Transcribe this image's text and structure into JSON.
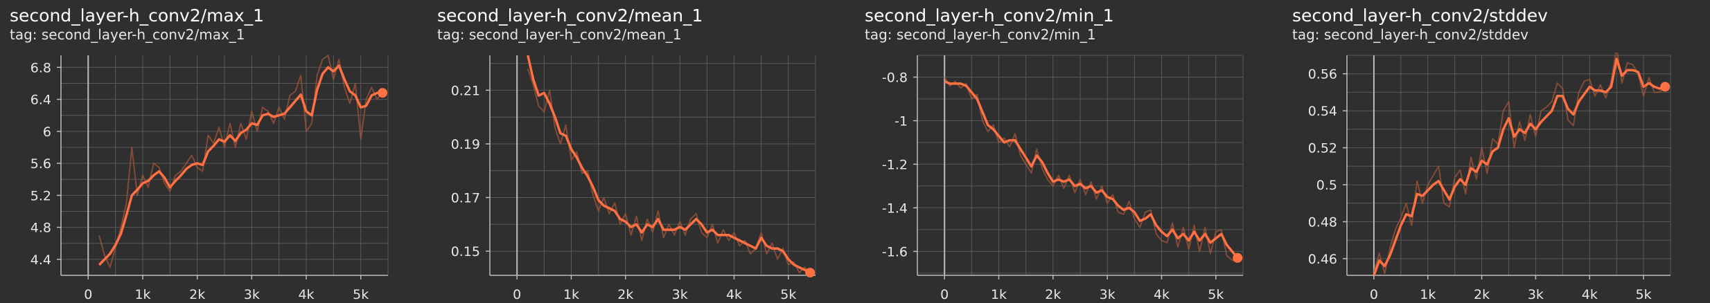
{
  "colors": {
    "background": "#2f2f2f",
    "grid": "#5a5a5a",
    "axis": "#bdbdbd",
    "line": "#ff7043",
    "raw_line": "#a0553a"
  },
  "chart_data": [
    {
      "type": "line",
      "title": "second_layer-h_conv2/max_1",
      "tag": "tag: second_layer-h_conv2/max_1",
      "xlim": [
        -500,
        5500
      ],
      "ylim": [
        4.2,
        6.95
      ],
      "xticks": [
        0,
        1000,
        2000,
        3000,
        4000,
        5000
      ],
      "xtick_labels": [
        "0",
        "1k",
        "2k",
        "3k",
        "4k",
        "5k"
      ],
      "yticks": [
        4.4,
        4.8,
        5.2,
        5.6,
        6.0,
        6.4,
        6.8
      ],
      "ytick_labels": [
        "4.4",
        "4.8",
        "5.2",
        "5.6",
        "6",
        "6.4",
        "6.8"
      ],
      "grid": true,
      "series": [
        {
          "role": "smoothed",
          "x": [
            200,
            300,
            400,
            500,
            600,
            700,
            800,
            900,
            1000,
            1100,
            1200,
            1300,
            1400,
            1500,
            1600,
            1700,
            1800,
            1900,
            2000,
            2100,
            2200,
            2300,
            2400,
            2500,
            2600,
            2700,
            2800,
            2900,
            3000,
            3100,
            3200,
            3300,
            3400,
            3500,
            3600,
            3700,
            3800,
            3900,
            4000,
            4100,
            4200,
            4300,
            4400,
            4500,
            4600,
            4700,
            4800,
            4900,
            5000,
            5100,
            5200,
            5300,
            5400
          ],
          "y": [
            4.33,
            4.4,
            4.47,
            4.58,
            4.72,
            4.95,
            5.2,
            5.27,
            5.35,
            5.38,
            5.45,
            5.5,
            5.42,
            5.3,
            5.38,
            5.45,
            5.53,
            5.58,
            5.6,
            5.58,
            5.75,
            5.82,
            5.9,
            5.87,
            5.95,
            5.88,
            5.98,
            6.02,
            6.1,
            6.08,
            6.2,
            6.22,
            6.18,
            6.2,
            6.22,
            6.3,
            6.38,
            6.46,
            6.25,
            6.2,
            6.52,
            6.72,
            6.8,
            6.75,
            6.82,
            6.65,
            6.5,
            6.45,
            6.3,
            6.32,
            6.45,
            6.48,
            6.48
          ]
        },
        {
          "role": "raw",
          "x": [
            200,
            300,
            400,
            500,
            600,
            700,
            800,
            900,
            1000,
            1100,
            1200,
            1300,
            1400,
            1500,
            1600,
            1700,
            1800,
            1900,
            2000,
            2100,
            2200,
            2300,
            2400,
            2500,
            2600,
            2700,
            2800,
            2900,
            3000,
            3100,
            3200,
            3300,
            3400,
            3500,
            3600,
            3700,
            3800,
            3900,
            4000,
            4100,
            4200,
            4300,
            4400,
            4500,
            4600,
            4700,
            4800,
            4900,
            5000,
            5100,
            5200,
            5300,
            5400
          ],
          "y": [
            4.7,
            4.45,
            4.3,
            4.55,
            4.8,
            5.1,
            5.8,
            5.2,
            5.45,
            5.3,
            5.6,
            5.55,
            5.35,
            5.25,
            5.45,
            5.5,
            5.6,
            5.7,
            5.55,
            5.5,
            5.95,
            5.85,
            6.05,
            5.8,
            6.1,
            5.8,
            6.1,
            5.9,
            6.25,
            6.0,
            6.3,
            6.25,
            6.1,
            6.3,
            6.15,
            6.45,
            6.5,
            6.7,
            6.0,
            6.1,
            6.7,
            6.9,
            6.95,
            6.65,
            6.9,
            6.55,
            6.35,
            6.6,
            5.9,
            6.4,
            6.55,
            6.4,
            6.5
          ]
        }
      ]
    },
    {
      "type": "line",
      "title": "second_layer-h_conv2/mean_1",
      "tag": "tag: second_layer-h_conv2/mean_1",
      "xlim": [
        -500,
        5500
      ],
      "ylim": [
        0.141,
        0.223
      ],
      "xticks": [
        0,
        1000,
        2000,
        3000,
        4000,
        5000
      ],
      "xtick_labels": [
        "0",
        "1k",
        "2k",
        "3k",
        "4k",
        "5k"
      ],
      "yticks": [
        0.15,
        0.17,
        0.19,
        0.21
      ],
      "ytick_labels": [
        "0.15",
        "0.17",
        "0.19",
        "0.21"
      ],
      "grid": true,
      "series": [
        {
          "role": "smoothed",
          "x": [
            200,
            300,
            400,
            500,
            600,
            700,
            800,
            900,
            1000,
            1100,
            1200,
            1300,
            1400,
            1500,
            1600,
            1700,
            1800,
            1900,
            2000,
            2100,
            2200,
            2300,
            2400,
            2500,
            2600,
            2700,
            2800,
            2900,
            3000,
            3100,
            3200,
            3300,
            3400,
            3500,
            3600,
            3700,
            3800,
            3900,
            4000,
            4100,
            4200,
            4300,
            4400,
            4500,
            4600,
            4700,
            4800,
            4900,
            5000,
            5100,
            5200,
            5300,
            5400
          ],
          "y": [
            0.223,
            0.214,
            0.208,
            0.209,
            0.205,
            0.2,
            0.194,
            0.193,
            0.188,
            0.185,
            0.181,
            0.178,
            0.174,
            0.169,
            0.167,
            0.166,
            0.165,
            0.162,
            0.161,
            0.159,
            0.16,
            0.157,
            0.16,
            0.159,
            0.162,
            0.158,
            0.158,
            0.158,
            0.159,
            0.158,
            0.16,
            0.162,
            0.16,
            0.157,
            0.158,
            0.156,
            0.156,
            0.156,
            0.155,
            0.154,
            0.153,
            0.152,
            0.151,
            0.155,
            0.152,
            0.151,
            0.151,
            0.15,
            0.147,
            0.145,
            0.144,
            0.143,
            0.142
          ]
        },
        {
          "role": "raw",
          "x": [
            200,
            300,
            400,
            500,
            600,
            700,
            800,
            900,
            1000,
            1100,
            1200,
            1300,
            1400,
            1500,
            1600,
            1700,
            1800,
            1900,
            2000,
            2100,
            2200,
            2300,
            2400,
            2500,
            2600,
            2700,
            2800,
            2900,
            3000,
            3100,
            3200,
            3300,
            3400,
            3500,
            3600,
            3700,
            3800,
            3900,
            4000,
            4100,
            4200,
            4300,
            4400,
            4500,
            4600,
            4700,
            4800,
            4900,
            5000,
            5100,
            5200,
            5300,
            5400
          ],
          "y": [
            0.218,
            0.212,
            0.204,
            0.202,
            0.21,
            0.196,
            0.19,
            0.197,
            0.184,
            0.187,
            0.179,
            0.18,
            0.171,
            0.165,
            0.17,
            0.164,
            0.168,
            0.16,
            0.164,
            0.156,
            0.163,
            0.154,
            0.162,
            0.157,
            0.165,
            0.155,
            0.16,
            0.156,
            0.161,
            0.156,
            0.162,
            0.164,
            0.157,
            0.155,
            0.16,
            0.153,
            0.158,
            0.154,
            0.157,
            0.152,
            0.154,
            0.149,
            0.151,
            0.157,
            0.149,
            0.153,
            0.147,
            0.151,
            0.145,
            0.146,
            0.142,
            0.144,
            0.142
          ]
        }
      ]
    },
    {
      "type": "line",
      "title": "second_layer-h_conv2/min_1",
      "tag": "tag: second_layer-h_conv2/min_1",
      "xlim": [
        -500,
        5500
      ],
      "ylim": [
        -1.71,
        -0.7
      ],
      "xticks": [
        0,
        1000,
        2000,
        3000,
        4000,
        5000
      ],
      "xtick_labels": [
        "0",
        "1k",
        "2k",
        "3k",
        "4k",
        "5k"
      ],
      "yticks": [
        -1.6,
        -1.4,
        -1.2,
        -1.0,
        -0.8
      ],
      "ytick_labels": [
        "-1.6",
        "-1.4",
        "-1.2",
        "-1",
        "-0.8"
      ],
      "grid": true,
      "series": [
        {
          "role": "smoothed",
          "x": [
            0,
            100,
            200,
            300,
            400,
            500,
            600,
            700,
            800,
            900,
            1000,
            1100,
            1200,
            1300,
            1400,
            1500,
            1600,
            1700,
            1800,
            1900,
            2000,
            2100,
            2200,
            2300,
            2400,
            2500,
            2600,
            2700,
            2800,
            2900,
            3000,
            3100,
            3200,
            3300,
            3400,
            3500,
            3600,
            3700,
            3800,
            3900,
            4000,
            4100,
            4200,
            4300,
            4400,
            4500,
            4600,
            4700,
            4800,
            4900,
            5000,
            5100,
            5200,
            5300,
            5400
          ],
          "y": [
            -0.82,
            -0.83,
            -0.83,
            -0.83,
            -0.84,
            -0.87,
            -0.9,
            -0.96,
            -1.02,
            -1.04,
            -1.07,
            -1.1,
            -1.09,
            -1.09,
            -1.13,
            -1.17,
            -1.21,
            -1.16,
            -1.19,
            -1.24,
            -1.28,
            -1.27,
            -1.28,
            -1.27,
            -1.3,
            -1.29,
            -1.31,
            -1.3,
            -1.33,
            -1.32,
            -1.35,
            -1.36,
            -1.39,
            -1.41,
            -1.4,
            -1.42,
            -1.46,
            -1.45,
            -1.43,
            -1.48,
            -1.51,
            -1.53,
            -1.5,
            -1.54,
            -1.52,
            -1.55,
            -1.51,
            -1.55,
            -1.52,
            -1.56,
            -1.54,
            -1.52,
            -1.57,
            -1.6,
            -1.63
          ]
        },
        {
          "role": "raw",
          "x": [
            0,
            100,
            200,
            300,
            400,
            500,
            600,
            700,
            800,
            900,
            1000,
            1100,
            1200,
            1300,
            1400,
            1500,
            1600,
            1700,
            1800,
            1900,
            2000,
            2100,
            2200,
            2300,
            2400,
            2500,
            2600,
            2700,
            2800,
            2900,
            3000,
            3100,
            3200,
            3300,
            3400,
            3500,
            3600,
            3700,
            3800,
            3900,
            4000,
            4100,
            4200,
            4300,
            4400,
            4500,
            4600,
            4700,
            4800,
            4900,
            5000,
            5100,
            5200,
            5300,
            5400
          ],
          "y": [
            -0.8,
            -0.84,
            -0.82,
            -0.85,
            -0.83,
            -0.9,
            -0.88,
            -1.0,
            -1.05,
            -1.02,
            -1.1,
            -1.08,
            -1.12,
            -1.06,
            -1.16,
            -1.2,
            -1.24,
            -1.13,
            -1.22,
            -1.27,
            -1.3,
            -1.25,
            -1.31,
            -1.25,
            -1.33,
            -1.27,
            -1.34,
            -1.28,
            -1.36,
            -1.3,
            -1.38,
            -1.34,
            -1.42,
            -1.43,
            -1.37,
            -1.45,
            -1.49,
            -1.42,
            -1.41,
            -1.52,
            -1.55,
            -1.56,
            -1.47,
            -1.58,
            -1.49,
            -1.59,
            -1.48,
            -1.6,
            -1.49,
            -1.61,
            -1.51,
            -1.5,
            -1.62,
            -1.64,
            -1.65
          ]
        }
      ]
    },
    {
      "type": "line",
      "title": "second_layer-h_conv2/stddev",
      "tag": "tag: second_layer-h_conv2/stddev",
      "xlim": [
        -500,
        5500
      ],
      "ylim": [
        0.451,
        0.57
      ],
      "xticks": [
        0,
        1000,
        2000,
        3000,
        4000,
        5000
      ],
      "xtick_labels": [
        "0",
        "1k",
        "2k",
        "3k",
        "4k",
        "5k"
      ],
      "yticks": [
        0.46,
        0.48,
        0.5,
        0.52,
        0.54,
        0.56
      ],
      "ytick_labels": [
        "0.46",
        "0.48",
        "0.5",
        "0.52",
        "0.54",
        "0.56"
      ],
      "grid": true,
      "series": [
        {
          "role": "smoothed",
          "x": [
            0,
            100,
            200,
            300,
            400,
            500,
            600,
            700,
            800,
            900,
            1000,
            1100,
            1200,
            1300,
            1400,
            1500,
            1600,
            1700,
            1800,
            1900,
            2000,
            2100,
            2200,
            2300,
            2400,
            2500,
            2600,
            2700,
            2800,
            2900,
            3000,
            3100,
            3200,
            3300,
            3400,
            3500,
            3600,
            3700,
            3800,
            3900,
            4000,
            4100,
            4200,
            4300,
            4400,
            4500,
            4600,
            4700,
            4800,
            4900,
            5000,
            5100,
            5200,
            5300,
            5400
          ],
          "y": [
            0.451,
            0.459,
            0.456,
            0.462,
            0.47,
            0.478,
            0.484,
            0.483,
            0.495,
            0.494,
            0.497,
            0.5,
            0.502,
            0.497,
            0.492,
            0.499,
            0.503,
            0.5,
            0.509,
            0.507,
            0.513,
            0.511,
            0.518,
            0.52,
            0.53,
            0.536,
            0.526,
            0.53,
            0.528,
            0.533,
            0.53,
            0.534,
            0.537,
            0.54,
            0.548,
            0.548,
            0.541,
            0.538,
            0.545,
            0.549,
            0.553,
            0.551,
            0.551,
            0.55,
            0.553,
            0.568,
            0.559,
            0.562,
            0.562,
            0.561,
            0.553,
            0.555,
            0.553,
            0.552,
            0.553
          ]
        },
        {
          "role": "raw",
          "x": [
            0,
            100,
            200,
            300,
            400,
            500,
            600,
            700,
            800,
            900,
            1000,
            1100,
            1200,
            1300,
            1400,
            1500,
            1600,
            1700,
            1800,
            1900,
            2000,
            2100,
            2200,
            2300,
            2400,
            2500,
            2600,
            2700,
            2800,
            2900,
            3000,
            3100,
            3200,
            3300,
            3400,
            3500,
            3600,
            3700,
            3800,
            3900,
            4000,
            4100,
            4200,
            4300,
            4400,
            4500,
            4600,
            4700,
            4800,
            4900,
            5000,
            5100,
            5200,
            5300,
            5400
          ],
          "y": [
            0.453,
            0.463,
            0.452,
            0.466,
            0.476,
            0.482,
            0.49,
            0.478,
            0.502,
            0.49,
            0.5,
            0.505,
            0.51,
            0.49,
            0.488,
            0.504,
            0.508,
            0.495,
            0.515,
            0.503,
            0.52,
            0.506,
            0.525,
            0.522,
            0.54,
            0.545,
            0.52,
            0.534,
            0.524,
            0.538,
            0.526,
            0.54,
            0.542,
            0.545,
            0.555,
            0.552,
            0.535,
            0.532,
            0.55,
            0.556,
            0.557,
            0.548,
            0.554,
            0.547,
            0.556,
            0.574,
            0.555,
            0.566,
            0.565,
            0.56,
            0.548,
            0.558,
            0.55,
            0.55,
            0.554
          ]
        }
      ]
    }
  ]
}
